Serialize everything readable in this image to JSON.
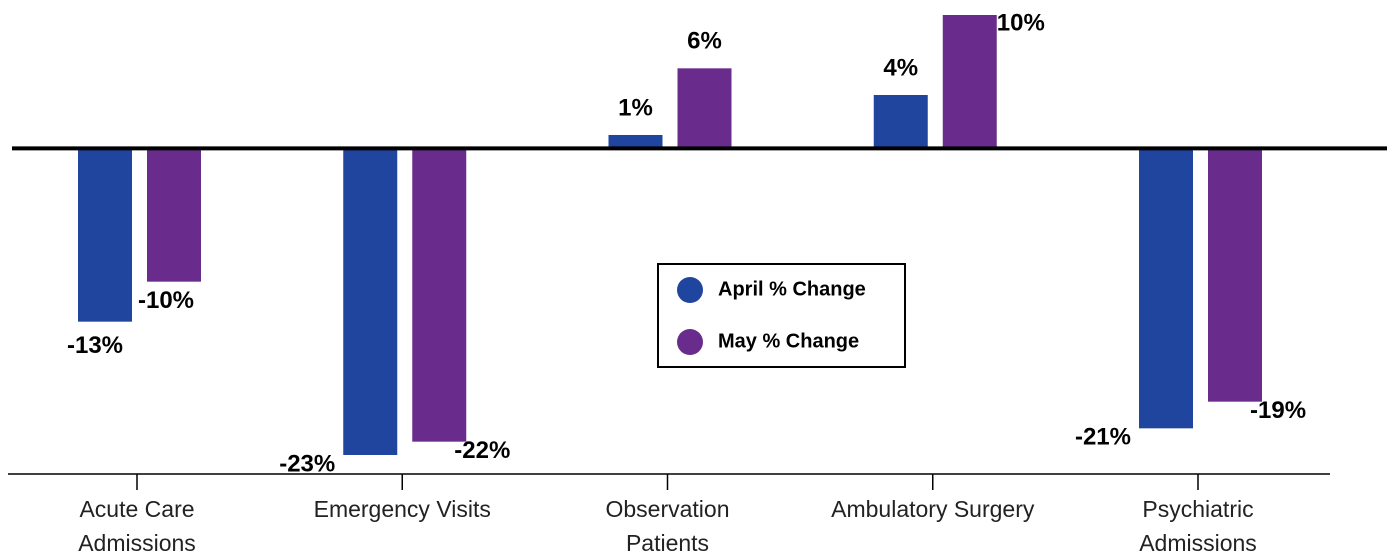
{
  "chart_data": {
    "type": "bar",
    "categories": [
      "Acute Care\nAdmissions",
      "Emergency Visits",
      "Observation\nPatients",
      "Ambulatory Surgery",
      "Psychiatric\nAdmissions"
    ],
    "series": [
      {
        "name": "April % Change",
        "color": "#1f459f",
        "values": [
          -13,
          -23,
          1,
          4,
          -21
        ],
        "value_labels": [
          "-13%",
          "-23%",
          "1%",
          "4%",
          "-21%"
        ]
      },
      {
        "name": "May % Change",
        "color": "#6a2c8c",
        "values": [
          -10,
          -22,
          6,
          10,
          -19
        ],
        "value_labels": [
          "-10%",
          "-22%",
          "6%",
          "10%",
          "-19%"
        ]
      }
    ],
    "legend": "center"
  }
}
